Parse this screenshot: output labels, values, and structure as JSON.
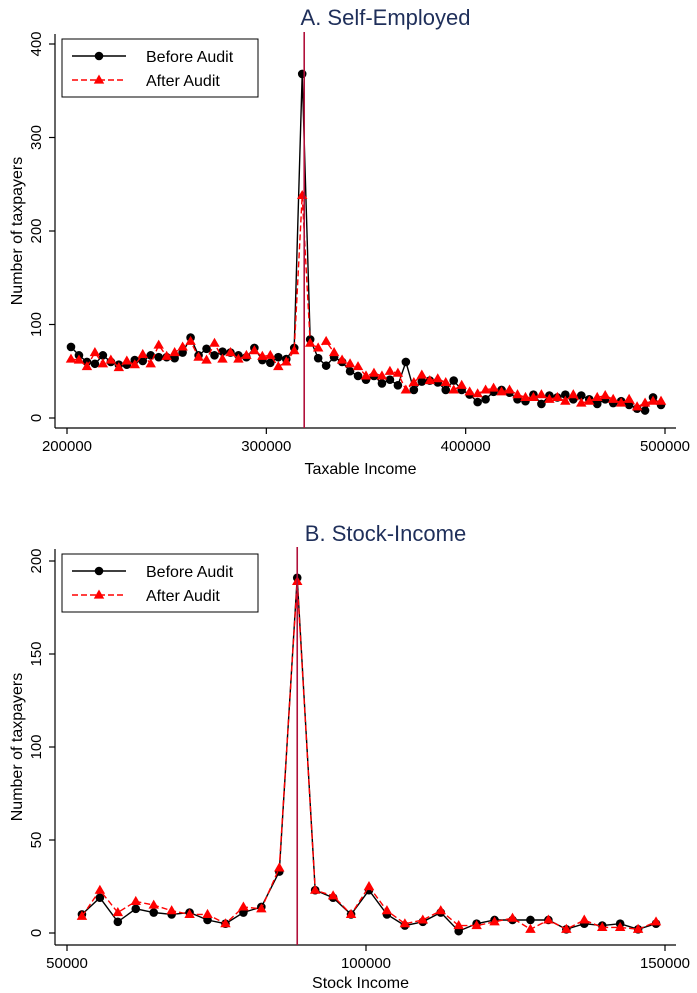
{
  "colors": {
    "before": "#000000",
    "after": "#ff0000",
    "cutoff": "#b0103a",
    "title": "#1f2f5a"
  },
  "chart_data": [
    {
      "type": "line",
      "title": "A. Self-Employed",
      "xlabel": "Taxable Income",
      "ylabel": "Number of taxpayers",
      "xlim": [
        200000,
        500000
      ],
      "ylim": [
        0,
        400
      ],
      "xticks": [
        "200000",
        "300000",
        "400000",
        "500000"
      ],
      "yticks": [
        "0",
        "100",
        "200",
        "300",
        "400"
      ],
      "cutoff_x": 319000,
      "legend": {
        "position": "top-left",
        "entries": [
          "Before Audit",
          "After Audit"
        ]
      },
      "series": [
        {
          "name": "Before Audit",
          "marker": "circle",
          "line": "solid",
          "x": [
            202000,
            206000,
            210000,
            214000,
            218000,
            222000,
            226000,
            230000,
            234000,
            238000,
            242000,
            246000,
            250000,
            254000,
            258000,
            262000,
            266000,
            270000,
            274000,
            278000,
            282000,
            286000,
            290000,
            294000,
            298000,
            302000,
            306000,
            310000,
            314000,
            318000,
            322000,
            326000,
            330000,
            334000,
            338000,
            342000,
            346000,
            350000,
            354000,
            358000,
            362000,
            366000,
            370000,
            374000,
            378000,
            382000,
            386000,
            390000,
            394000,
            398000,
            402000,
            406000,
            410000,
            414000,
            418000,
            422000,
            426000,
            430000,
            434000,
            438000,
            442000,
            446000,
            450000,
            454000,
            458000,
            462000,
            466000,
            470000,
            474000,
            478000,
            482000,
            486000,
            490000,
            494000,
            498000
          ],
          "y": [
            76,
            67,
            60,
            58,
            67,
            60,
            57,
            57,
            62,
            61,
            67,
            65,
            65,
            64,
            70,
            86,
            67,
            74,
            67,
            71,
            70,
            67,
            65,
            75,
            62,
            59,
            65,
            63,
            75,
            368,
            84,
            64,
            56,
            65,
            60,
            50,
            45,
            41,
            45,
            37,
            41,
            35,
            60,
            30,
            39,
            40,
            38,
            30,
            40,
            30,
            25,
            17,
            20,
            28,
            30,
            27,
            20,
            18,
            25,
            15,
            24,
            22,
            25,
            20,
            24,
            20,
            15,
            20,
            16,
            18,
            14,
            10,
            8,
            22,
            14
          ]
        },
        {
          "name": "After Audit",
          "marker": "triangle",
          "line": "dashed",
          "x": [
            202000,
            206000,
            210000,
            214000,
            218000,
            222000,
            226000,
            230000,
            234000,
            238000,
            242000,
            246000,
            250000,
            254000,
            258000,
            262000,
            266000,
            270000,
            274000,
            278000,
            282000,
            286000,
            290000,
            294000,
            298000,
            302000,
            306000,
            310000,
            314000,
            318000,
            322000,
            326000,
            330000,
            334000,
            338000,
            342000,
            346000,
            350000,
            354000,
            358000,
            362000,
            366000,
            370000,
            374000,
            378000,
            382000,
            386000,
            390000,
            394000,
            398000,
            402000,
            406000,
            410000,
            414000,
            418000,
            422000,
            426000,
            430000,
            434000,
            438000,
            442000,
            446000,
            450000,
            454000,
            458000,
            462000,
            466000,
            470000,
            474000,
            478000,
            482000,
            486000,
            490000,
            494000,
            498000
          ],
          "y": [
            63,
            62,
            55,
            70,
            58,
            62,
            54,
            61,
            57,
            68,
            58,
            78,
            66,
            70,
            76,
            82,
            65,
            62,
            80,
            63,
            70,
            63,
            67,
            72,
            66,
            67,
            55,
            60,
            72,
            238,
            80,
            75,
            82,
            70,
            62,
            58,
            55,
            45,
            48,
            45,
            50,
            48,
            30,
            38,
            46,
            40,
            42,
            38,
            30,
            35,
            28,
            26,
            30,
            32,
            28,
            30,
            25,
            22,
            22,
            25,
            20,
            22,
            18,
            25,
            16,
            18,
            22,
            24,
            20,
            16,
            20,
            12,
            16,
            18,
            18
          ]
        }
      ]
    },
    {
      "type": "line",
      "title": "B. Stock-Income",
      "xlabel": "Stock Income",
      "ylabel": "Number of taxpayers",
      "xlim": [
        50000,
        150000
      ],
      "ylim": [
        0,
        200
      ],
      "xticks": [
        "50000",
        "100000",
        "150000"
      ],
      "yticks": [
        "0",
        "50",
        "100",
        "150",
        "200"
      ],
      "cutoff_x": 88500,
      "legend": {
        "position": "top-left",
        "entries": [
          "Before Audit",
          "After Audit"
        ]
      },
      "series": [
        {
          "name": "Before Audit",
          "marker": "circle",
          "line": "solid",
          "x": [
            52500,
            55500,
            58500,
            61500,
            64500,
            67500,
            70500,
            73500,
            76500,
            79500,
            82500,
            85500,
            88500,
            91500,
            94500,
            97500,
            100500,
            103500,
            106500,
            109500,
            112500,
            115500,
            118500,
            121500,
            124500,
            127500,
            130500,
            133500,
            136500,
            139500,
            142500,
            145500,
            148500
          ],
          "y": [
            10,
            19,
            6,
            13,
            11,
            10,
            11,
            7,
            5,
            11,
            14,
            33,
            191,
            23,
            19,
            10,
            23,
            10,
            4,
            6,
            11,
            1,
            5,
            7,
            7,
            7,
            7,
            2,
            5,
            4,
            5,
            2,
            5
          ]
        },
        {
          "name": "After Audit",
          "marker": "triangle",
          "line": "dashed",
          "x": [
            52500,
            55500,
            58500,
            61500,
            64500,
            67500,
            70500,
            73500,
            76500,
            79500,
            82500,
            85500,
            88500,
            91500,
            94500,
            97500,
            100500,
            103500,
            106500,
            109500,
            112500,
            115500,
            118500,
            121500,
            124500,
            127500,
            130500,
            133500,
            136500,
            139500,
            142500,
            145500,
            148500
          ],
          "y": [
            9,
            23,
            11,
            17,
            15,
            12,
            10,
            10,
            5,
            14,
            13,
            35,
            189,
            23,
            20,
            10,
            25,
            12,
            5,
            7,
            12,
            4,
            4,
            6,
            8,
            2,
            7,
            2,
            7,
            3,
            3,
            2,
            6
          ]
        }
      ]
    }
  ]
}
